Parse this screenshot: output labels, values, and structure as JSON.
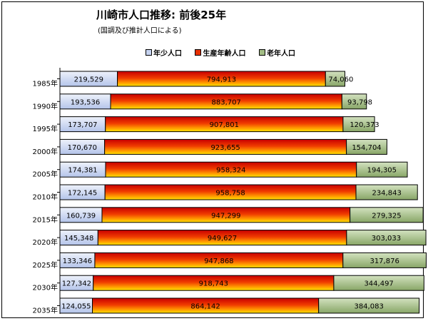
{
  "chart_data": {
    "type": "bar",
    "orientation": "horizontal",
    "stacked": true,
    "title": "川崎市人口推移: 前後25年",
    "subtitle": "(国調及び推計人口による)",
    "categories": [
      "1985年",
      "1990年",
      "1995年",
      "2000年",
      "2005年",
      "2010年",
      "2015年",
      "2020年",
      "2025年",
      "2030年",
      "2035年"
    ],
    "series": [
      {
        "name": "年少人口",
        "values": [
          219529,
          193536,
          173707,
          170670,
          174381,
          172145,
          160739,
          145348,
          133346,
          127342,
          124055
        ],
        "labels": [
          "219,529",
          "193,536",
          "173,707",
          "170,670",
          "174,381",
          "172,145",
          "160,739",
          "145,348",
          "133,346",
          "127,342",
          "124,055"
        ],
        "color": "#c6d3f0"
      },
      {
        "name": "生産年齢人口",
        "values": [
          794913,
          883707,
          907801,
          923655,
          958324,
          958758,
          947299,
          949627,
          947868,
          918743,
          864142
        ],
        "labels": [
          "794,913",
          "883,707",
          "907,801",
          "923,655",
          "958,324",
          "958,758",
          "947,299",
          "949,627",
          "947,868",
          "918,743",
          "864,142"
        ],
        "color": "#e83000"
      },
      {
        "name": "老年人口",
        "values": [
          74060,
          93798,
          120373,
          154704,
          194305,
          234843,
          279325,
          303033,
          317876,
          344497,
          384083
        ],
        "labels": [
          "74,060",
          "93,798",
          "120,373",
          "154,704",
          "194,305",
          "234,843",
          "279,325",
          "303,033",
          "317,876",
          "344,497",
          "384,083"
        ],
        "color": "#a3bd85"
      }
    ],
    "legend": "top",
    "grid": false
  }
}
